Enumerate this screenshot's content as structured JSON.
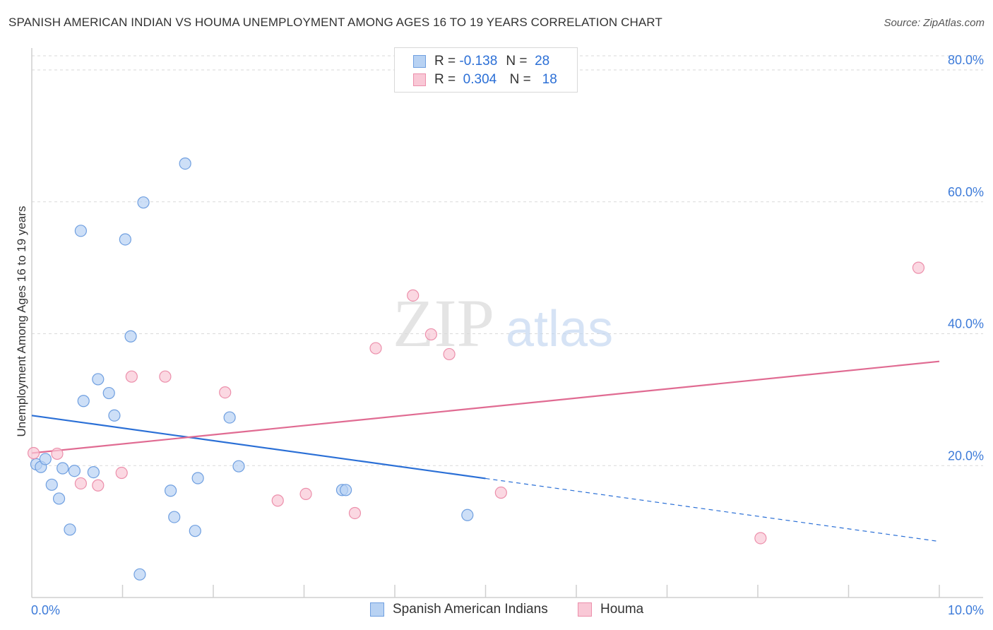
{
  "title": "SPANISH AMERICAN INDIAN VS HOUMA UNEMPLOYMENT AMONG AGES 16 TO 19 YEARS CORRELATION CHART",
  "source": "Source: ZipAtlas.com",
  "watermark": {
    "zip": "ZIP",
    "atlas": "atlas"
  },
  "legend": {
    "r_label": "R =",
    "n_label": "N =",
    "rows": [
      {
        "r": "-0.138",
        "n": "28"
      },
      {
        "r": "0.304",
        "n": "18"
      }
    ]
  },
  "colors": {
    "blue_fill": "#b8d2f3",
    "blue_stroke": "#6f9fe0",
    "blue_line": "#2a6fd6",
    "pink_fill": "#f9c8d6",
    "pink_stroke": "#ec8fab",
    "pink_line": "#e06b92",
    "tick_label": "#3d7bd9",
    "grid": "#d9d9d9"
  },
  "chart_data": {
    "type": "scatter",
    "xlabel": "",
    "ylabel": "Unemployment Among Ages 16 to 19 years",
    "xlim": [
      0,
      10
    ],
    "ylim": [
      0,
      80
    ],
    "x_tick_labels": {
      "min": "0.0%",
      "max": "10.0%"
    },
    "y_ticks": [
      {
        "value": 20,
        "label": "20.0%"
      },
      {
        "value": 40,
        "label": "40.0%"
      },
      {
        "value": 60,
        "label": "60.0%"
      },
      {
        "value": 80,
        "label": "80.0%"
      }
    ],
    "grid": true,
    "legend_position": "top-center",
    "series": [
      {
        "name": "Spanish American Indians",
        "color": "blue",
        "points": [
          [
            0.05,
            20.2
          ],
          [
            0.1,
            19.8
          ],
          [
            0.15,
            21.0
          ],
          [
            0.22,
            17.1
          ],
          [
            0.3,
            15.0
          ],
          [
            0.34,
            19.6
          ],
          [
            0.42,
            10.3
          ],
          [
            0.47,
            19.2
          ],
          [
            0.54,
            55.6
          ],
          [
            0.57,
            29.8
          ],
          [
            0.68,
            19.0
          ],
          [
            0.73,
            33.1
          ],
          [
            0.85,
            31.0
          ],
          [
            0.91,
            27.6
          ],
          [
            1.03,
            54.3
          ],
          [
            1.09,
            39.6
          ],
          [
            1.19,
            3.5
          ],
          [
            1.23,
            59.9
          ],
          [
            1.53,
            16.2
          ],
          [
            1.57,
            12.2
          ],
          [
            1.69,
            65.8
          ],
          [
            1.8,
            10.1
          ],
          [
            1.83,
            18.1
          ],
          [
            2.18,
            27.3
          ],
          [
            2.28,
            19.9
          ],
          [
            3.42,
            16.3
          ],
          [
            3.46,
            16.3
          ],
          [
            4.8,
            12.5
          ]
        ],
        "trend": {
          "x0": 0,
          "y0": 27.6,
          "x1": 10,
          "y1": 8.5,
          "solid_until_x": 5.0
        }
      },
      {
        "name": "Houma",
        "color": "pink",
        "points": [
          [
            0.02,
            21.9
          ],
          [
            0.28,
            21.8
          ],
          [
            0.54,
            17.3
          ],
          [
            0.73,
            17.0
          ],
          [
            0.99,
            18.9
          ],
          [
            1.1,
            33.5
          ],
          [
            1.47,
            33.5
          ],
          [
            2.13,
            31.1
          ],
          [
            2.71,
            14.7
          ],
          [
            3.02,
            15.7
          ],
          [
            3.56,
            12.8
          ],
          [
            3.79,
            37.8
          ],
          [
            4.2,
            45.8
          ],
          [
            4.4,
            39.9
          ],
          [
            4.6,
            36.9
          ],
          [
            5.17,
            15.9
          ],
          [
            8.03,
            9.0
          ],
          [
            9.77,
            50.0
          ]
        ],
        "trend": {
          "x0": 0,
          "y0": 21.9,
          "x1": 10,
          "y1": 35.8
        }
      }
    ]
  }
}
